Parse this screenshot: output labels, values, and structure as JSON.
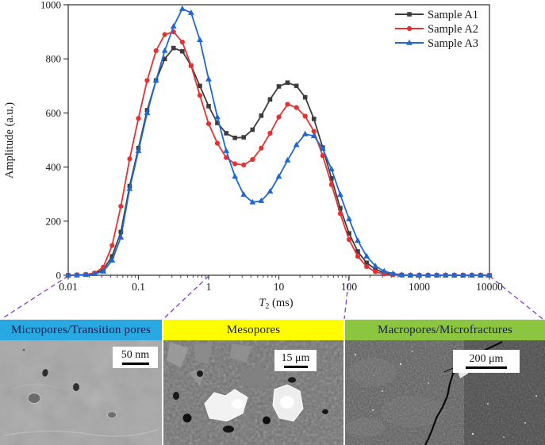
{
  "chart": {
    "ylabel": "Amplitude (a.u.)",
    "xlabel": {
      "symbol": "T",
      "subscript": "2",
      "unit": " (ms)"
    },
    "x_tick_labels": [
      "0.01",
      "0.1",
      "1",
      "10",
      "100",
      "1000",
      "10000"
    ],
    "y_tick_labels": [
      "0",
      "200",
      "400",
      "600",
      "800",
      "1000"
    ],
    "frame_color": "#3c3c3c",
    "connector_color": "#8a3cc2"
  },
  "chart_data": {
    "type": "line",
    "xscale": "log",
    "xlim": [
      0.01,
      10000
    ],
    "ylim": [
      0,
      1000
    ],
    "xlabel": "T2 (ms)",
    "ylabel": "Amplitude (a.u.)",
    "grid": false,
    "legend_position": "top-right",
    "x_t2_ms": [
      0.01,
      0.0133,
      0.0178,
      0.0237,
      0.0316,
      0.0422,
      0.0562,
      0.075,
      0.1,
      0.133,
      0.178,
      0.237,
      0.316,
      0.422,
      0.562,
      0.75,
      1,
      1.33,
      1.78,
      2.37,
      3.16,
      4.22,
      5.62,
      7.5,
      10,
      13.3,
      17.8,
      23.7,
      31.6,
      42.2,
      56.2,
      75,
      100,
      133,
      178,
      237,
      316,
      422,
      562,
      750,
      1000,
      1334,
      1778,
      2371,
      3162,
      4217,
      5623,
      7499,
      10000
    ],
    "series": [
      {
        "name": "Sample A1",
        "color": "#3d3d3d",
        "marker": "square",
        "values": [
          0,
          1,
          2,
          6,
          20,
          70,
          160,
          330,
          470,
          610,
          720,
          800,
          840,
          828,
          775,
          700,
          625,
          563,
          525,
          508,
          510,
          538,
          590,
          650,
          698,
          712,
          700,
          658,
          578,
          472,
          358,
          248,
          155,
          88,
          46,
          22,
          9,
          3,
          1,
          0,
          0,
          0,
          0,
          0,
          0,
          0,
          0,
          0,
          0
        ]
      },
      {
        "name": "Sample A2",
        "color": "#e63132",
        "marker": "circle",
        "values": [
          0,
          1,
          3,
          8,
          30,
          110,
          255,
          430,
          580,
          720,
          830,
          890,
          900,
          862,
          775,
          665,
          560,
          488,
          435,
          412,
          408,
          428,
          470,
          525,
          585,
          632,
          620,
          588,
          532,
          442,
          335,
          228,
          132,
          70,
          32,
          13,
          5,
          2,
          0,
          0,
          0,
          0,
          0,
          0,
          0,
          0,
          0,
          0,
          0
        ]
      },
      {
        "name": "Sample A3",
        "color": "#1f68d4",
        "marker": "triangle",
        "values": [
          0,
          0,
          2,
          5,
          14,
          55,
          140,
          320,
          460,
          600,
          720,
          830,
          920,
          985,
          970,
          870,
          725,
          585,
          460,
          365,
          298,
          270,
          275,
          310,
          365,
          425,
          482,
          522,
          515,
          468,
          392,
          298,
          208,
          128,
          70,
          34,
          15,
          6,
          2,
          0,
          0,
          0,
          0,
          0,
          0,
          0,
          0,
          0,
          0
        ]
      }
    ]
  },
  "regions": [
    {
      "label": "Micropores/Transition pores",
      "color": "#29a9e1"
    },
    {
      "label": "Mesopores",
      "color": "#fefe00"
    },
    {
      "label": "Macropores/Microfractures",
      "color": "#8cc640"
    }
  ],
  "sem_panels": [
    {
      "name": "micropores-sem",
      "scale_label": "50 nm"
    },
    {
      "name": "mesopores-sem",
      "scale_label": "15 μm"
    },
    {
      "name": "macropores-sem",
      "scale_label": "200 μm"
    }
  ]
}
